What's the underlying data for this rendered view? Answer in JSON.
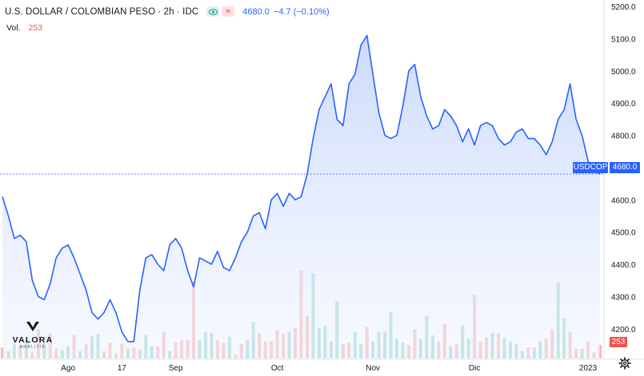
{
  "header": {
    "symbol_title": "U.S. DOLLAR / COLOMBIAN PESO · 2h · IDC",
    "eye_icon": "eye-icon",
    "approx_icon": "≈",
    "last_price": "4680.0",
    "change": "−4.7 (−0.10%)"
  },
  "volume_legend": {
    "label": "Vol.",
    "value": "253"
  },
  "badges": {
    "symbol": "USDCOP",
    "price": "4680.0",
    "volume": "253"
  },
  "logo": {
    "name": "VALORA",
    "tagline": "ANALITIK"
  },
  "colors": {
    "line": "#2962ff",
    "fill": "#dbe6fc",
    "vol_up": "#9fd8cf",
    "vol_down": "#f6b8b6",
    "axis_text": "#131722"
  },
  "chart_data": {
    "type": "area",
    "title": "U.S. DOLLAR / COLOMBIAN PESO · 2h · IDC",
    "xlabel": "",
    "ylabel": "",
    "ylim": [
      4140,
      5220
    ],
    "y_ticks": [
      4200,
      4300,
      4400,
      4500,
      4600,
      4700,
      4800,
      4900,
      5000,
      5100,
      5200
    ],
    "y_tick_labels": [
      "4200.0",
      "4300.0",
      "4400.0",
      "4500.0",
      "4600.0",
      "4700.0",
      "4800.0",
      "4900.0",
      "5000.0",
      "5100.0",
      "5200.0"
    ],
    "x_tick_labels": [
      "Ago",
      "17",
      "Sep",
      "Oct",
      "Nov",
      "Dic",
      "2023"
    ],
    "x_tick_index": [
      11,
      20,
      29,
      46,
      62,
      79,
      98
    ],
    "last_value": 4680.0,
    "series": [
      {
        "values": [
          4610,
          4550,
          4480,
          4490,
          4470,
          4350,
          4300,
          4290,
          4340,
          4420,
          4450,
          4460,
          4420,
          4370,
          4320,
          4250,
          4230,
          4250,
          4290,
          4250,
          4190,
          4160,
          4160,
          4320,
          4420,
          4430,
          4400,
          4380,
          4460,
          4480,
          4450,
          4380,
          4330,
          4420,
          4410,
          4400,
          4440,
          4390,
          4380,
          4420,
          4470,
          4500,
          4550,
          4560,
          4510,
          4600,
          4620,
          4580,
          4620,
          4600,
          4610,
          4680,
          4790,
          4880,
          4920,
          4960,
          4850,
          4830,
          4960,
          4990,
          5080,
          5110,
          4990,
          4870,
          4800,
          4790,
          4800,
          4890,
          5000,
          5020,
          4920,
          4860,
          4820,
          4830,
          4880,
          4860,
          4830,
          4780,
          4820,
          4770,
          4830,
          4840,
          4830,
          4790,
          4770,
          4780,
          4810,
          4820,
          4790,
          4790,
          4770,
          4740,
          4780,
          4850,
          4880,
          4960,
          4850,
          4800,
          4720,
          4690,
          4680
        ]
      }
    ],
    "volume": {
      "values": [
        9,
        6,
        12,
        11,
        15,
        5,
        24,
        13,
        21,
        8,
        7,
        10,
        19,
        6,
        12,
        18,
        20,
        6,
        13,
        4,
        12,
        8,
        9,
        7,
        19,
        10,
        10,
        22,
        6,
        13,
        15,
        15,
        63,
        15,
        22,
        21,
        15,
        13,
        18,
        3,
        12,
        15,
        30,
        21,
        14,
        14,
        23,
        20,
        22,
        25,
        72,
        35,
        70,
        25,
        27,
        14,
        47,
        12,
        13,
        22,
        12,
        26,
        14,
        22,
        22,
        38,
        16,
        13,
        11,
        24,
        16,
        35,
        19,
        14,
        28,
        10,
        12,
        27,
        16,
        52,
        14,
        17,
        21,
        21,
        17,
        14,
        12,
        6,
        9,
        9,
        14,
        16,
        24,
        62,
        33,
        22,
        8,
        8,
        14,
        5,
        11
      ],
      "colors": [
        "down",
        "up",
        "up",
        "down",
        "up",
        "down",
        "down",
        "up",
        "down",
        "down",
        "up",
        "up",
        "down",
        "up",
        "down",
        "up",
        "up",
        "down",
        "down",
        "down",
        "down",
        "up",
        "down",
        "up",
        "up",
        "up",
        "down",
        "down",
        "up",
        "down",
        "down",
        "down",
        "down",
        "up",
        "up",
        "up",
        "down",
        "down",
        "up",
        "down",
        "down",
        "up",
        "up",
        "down",
        "down",
        "down",
        "down",
        "down",
        "up",
        "down",
        "down",
        "down",
        "up",
        "up",
        "up",
        "up",
        "up",
        "down",
        "down",
        "up",
        "up",
        "down",
        "up",
        "up",
        "up",
        "up",
        "up",
        "up",
        "down",
        "down",
        "up",
        "up",
        "up",
        "down",
        "down",
        "up",
        "down",
        "up",
        "up",
        "down",
        "down",
        "down",
        "up",
        "down",
        "up",
        "up",
        "up",
        "up",
        "down",
        "up",
        "up",
        "down",
        "down",
        "up",
        "up",
        "down",
        "down",
        "up",
        "down",
        "down",
        "down"
      ]
    }
  }
}
